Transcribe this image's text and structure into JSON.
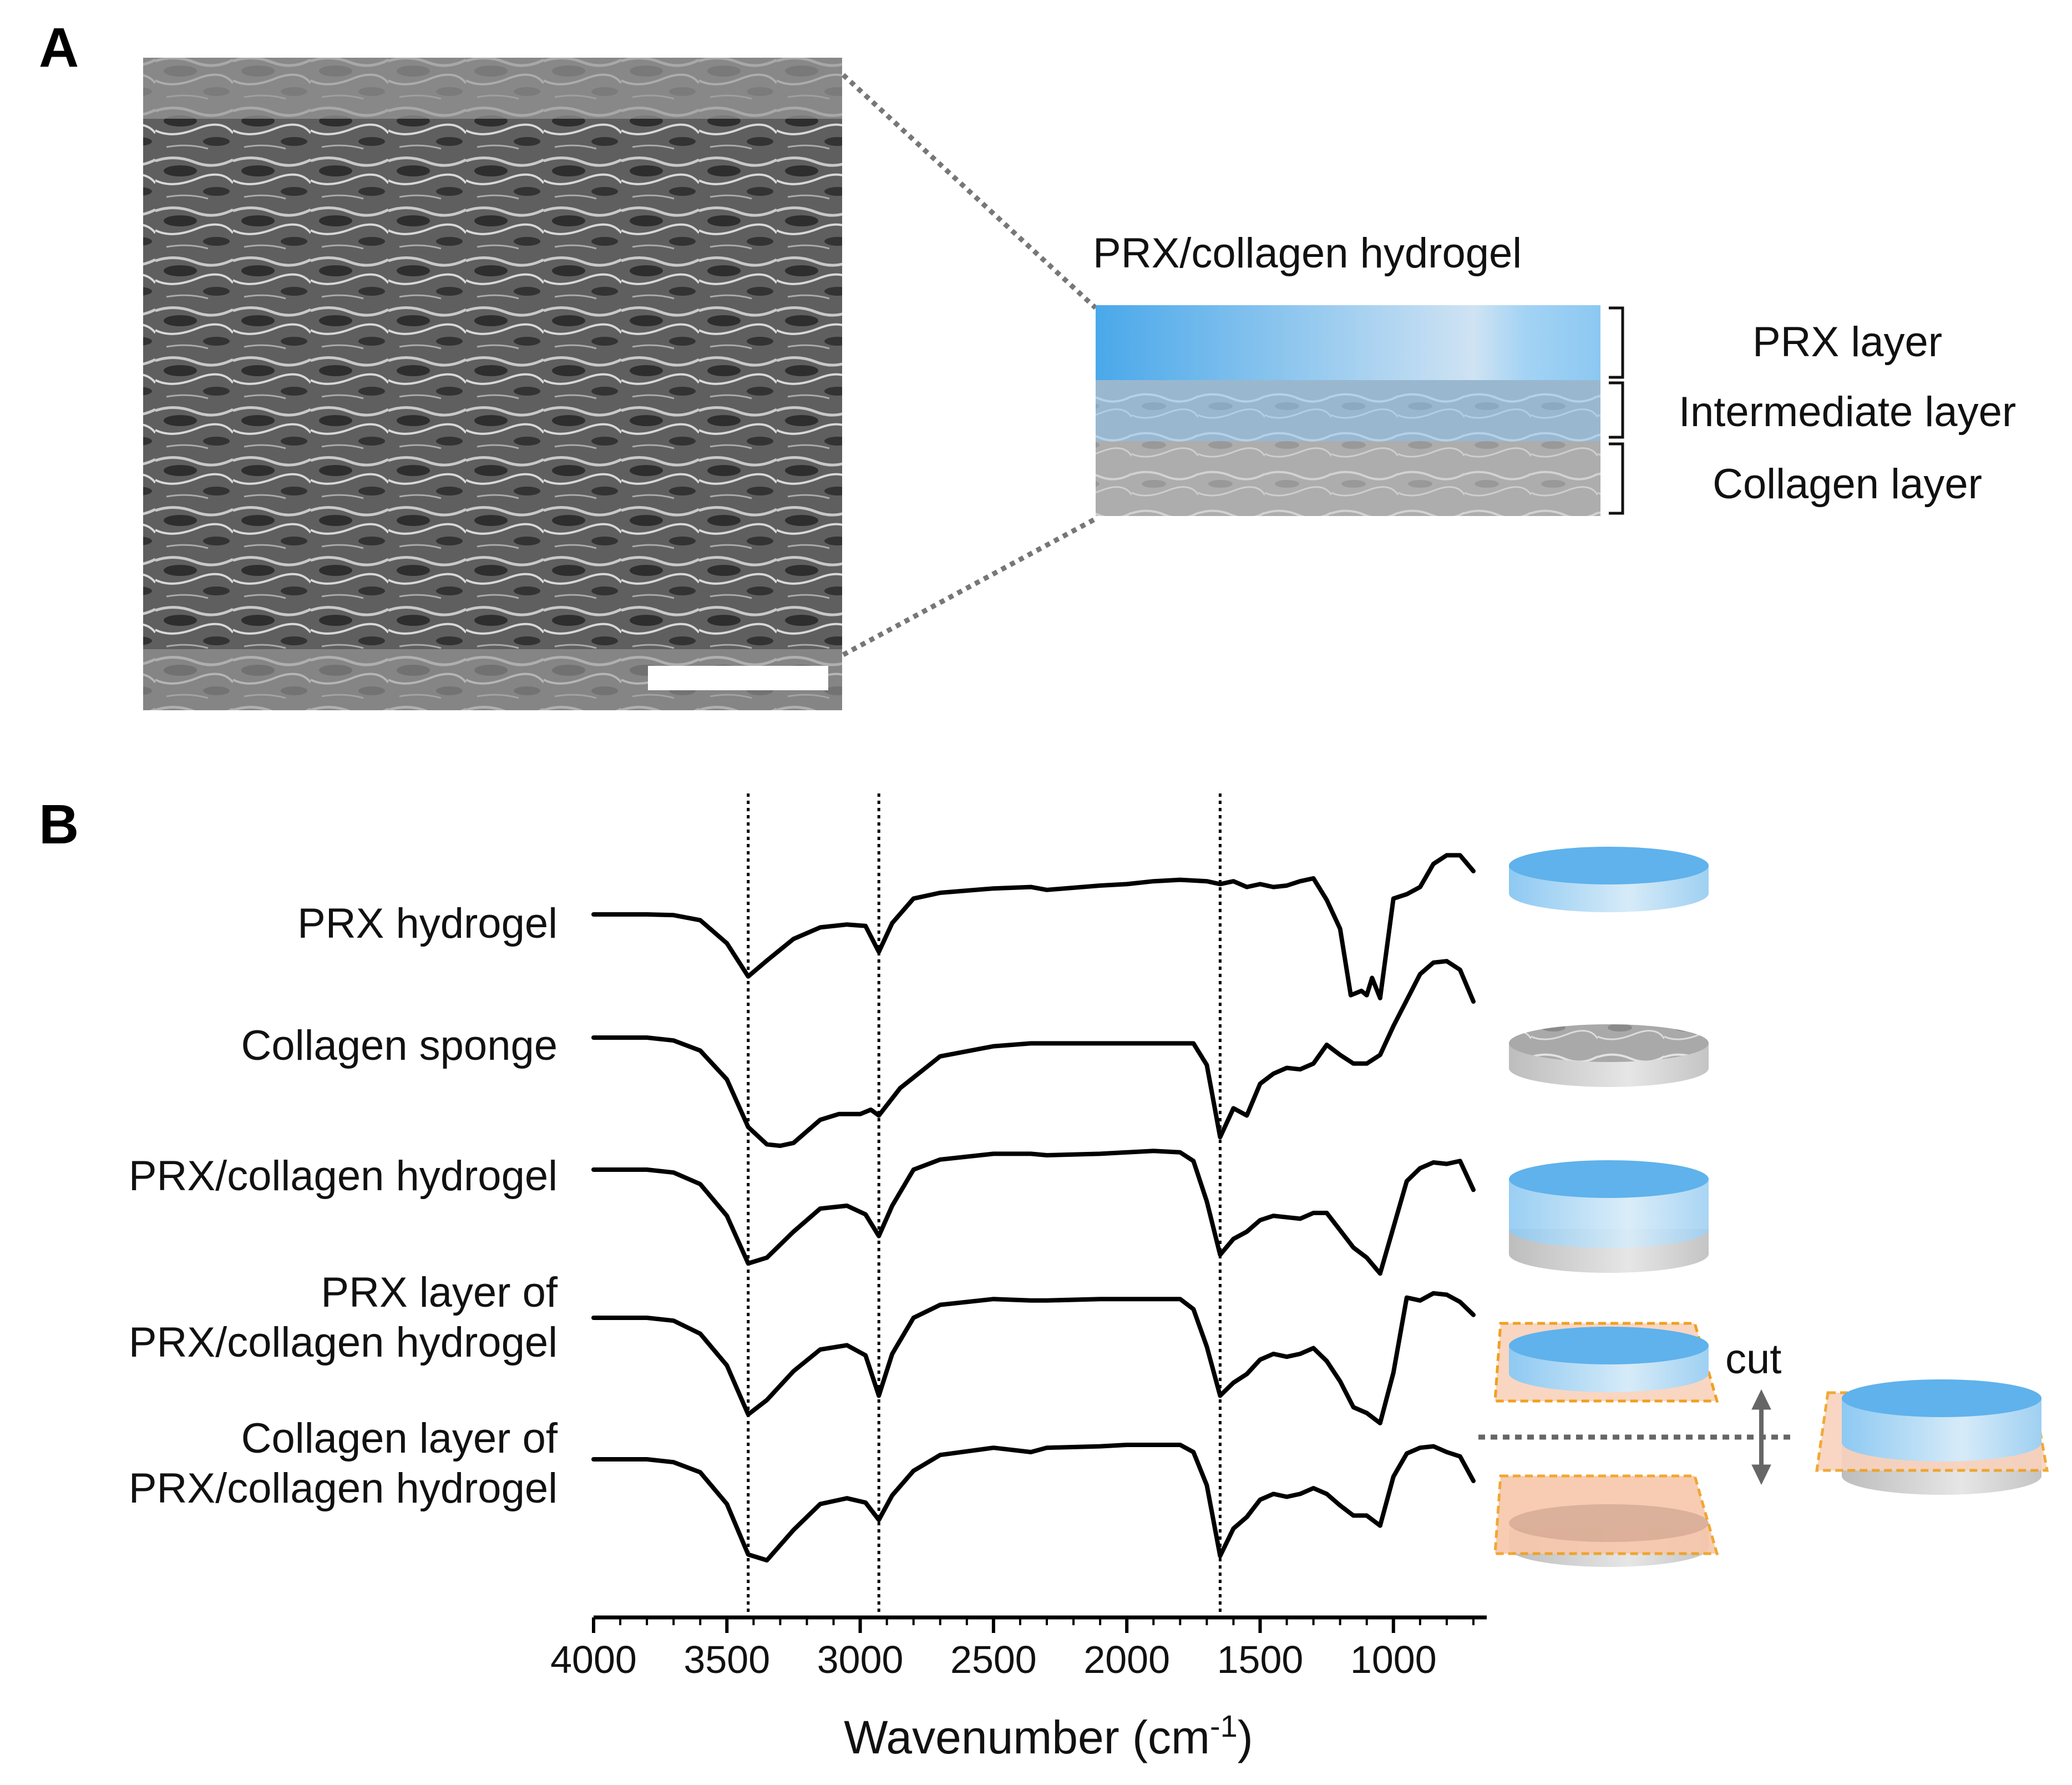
{
  "panel_a": {
    "letter": "A",
    "schematic_title": "PRX/collagen hydrogel",
    "layers": [
      "PRX layer",
      "Intermediate layer",
      "Collagen layer"
    ]
  },
  "panel_b": {
    "letter": "B",
    "cut_label": "cut",
    "sample_labels": [
      [
        "PRX hydrogel"
      ],
      [
        "Collagen sponge"
      ],
      [
        "PRX/collagen hydrogel"
      ],
      [
        "PRX layer of",
        "PRX/collagen hydrogel"
      ],
      [
        "Collagen layer of",
        "PRX/collagen hydrogel"
      ]
    ]
  },
  "chart_data": {
    "type": "line",
    "xlabel": "Wavenumber (cm",
    "xlabel_superscript": "-1",
    "xlabel_suffix": ")",
    "xlim": [
      4000,
      650
    ],
    "x_reversed": true,
    "xticks": [
      4000,
      3500,
      3000,
      2500,
      2000,
      1500,
      1000
    ],
    "reference_lines": [
      3420,
      2930,
      1650
    ],
    "series": [
      {
        "name": "PRX hydrogel",
        "x": [
          4000,
          3800,
          3700,
          3600,
          3500,
          3420,
          3350,
          3250,
          3150,
          3050,
          2980,
          2930,
          2880,
          2800,
          2700,
          2500,
          2360,
          2300,
          2100,
          2000,
          1900,
          1800,
          1700,
          1650,
          1600,
          1550,
          1500,
          1450,
          1400,
          1350,
          1300,
          1250,
          1200,
          1160,
          1120,
          1100,
          1080,
          1050,
          1000,
          950,
          900,
          850,
          800,
          750,
          700
        ],
        "y": [
          0,
          0,
          0.5,
          4,
          20,
          43,
          32,
          17,
          9,
          7,
          8,
          26,
          6,
          -11,
          -15,
          -18,
          -19,
          -17,
          -20,
          -21,
          -23,
          -24,
          -23,
          -21,
          -23,
          -19,
          -21,
          -19,
          -20,
          -23,
          -25,
          -10,
          10,
          56,
          53,
          56,
          44,
          58,
          -11,
          -14,
          -19,
          -35,
          -41,
          -41,
          -30
        ]
      },
      {
        "name": "Collagen sponge",
        "x": [
          4000,
          3800,
          3700,
          3600,
          3500,
          3420,
          3350,
          3300,
          3250,
          3150,
          3080,
          3000,
          2960,
          2930,
          2850,
          2700,
          2500,
          2360,
          2300,
          2100,
          2000,
          1900,
          1800,
          1750,
          1700,
          1650,
          1600,
          1550,
          1500,
          1450,
          1400,
          1350,
          1300,
          1250,
          1200,
          1150,
          1100,
          1050,
          1000,
          950,
          900,
          850,
          800,
          750,
          700
        ],
        "y": [
          0,
          0,
          2,
          9,
          29,
          62,
          74,
          75,
          73,
          57,
          53,
          53,
          50,
          54,
          35,
          13,
          6,
          4,
          4,
          4,
          4,
          4,
          4,
          4,
          19,
          69,
          49,
          54,
          32,
          25,
          21,
          22,
          18,
          5,
          12,
          18,
          18,
          12,
          -8,
          -26,
          -44,
          -52,
          -53,
          -47,
          -25
        ]
      },
      {
        "name": "PRX/collagen hydrogel",
        "x": [
          4000,
          3800,
          3700,
          3600,
          3500,
          3420,
          3350,
          3250,
          3150,
          3050,
          2980,
          2930,
          2880,
          2800,
          2700,
          2500,
          2360,
          2300,
          2100,
          2000,
          1900,
          1800,
          1750,
          1700,
          1650,
          1600,
          1550,
          1500,
          1450,
          1400,
          1350,
          1300,
          1250,
          1200,
          1150,
          1100,
          1050,
          1000,
          950,
          900,
          850,
          800,
          750,
          700
        ],
        "y": [
          0,
          0,
          2,
          10,
          32,
          65,
          61,
          43,
          27,
          25,
          31,
          46,
          25,
          0,
          -7,
          -11,
          -11,
          -10,
          -11,
          -12,
          -13,
          -12,
          -6,
          22,
          59,
          48,
          43,
          35,
          32,
          33,
          34,
          30,
          30,
          42,
          54,
          61,
          72,
          40,
          8,
          -1,
          -5,
          -4,
          -6,
          14
        ]
      },
      {
        "name": "PRX layer of PRX/collagen hydrogel",
        "x": [
          4000,
          3800,
          3700,
          3600,
          3500,
          3420,
          3350,
          3250,
          3150,
          3050,
          2980,
          2930,
          2880,
          2800,
          2700,
          2500,
          2360,
          2300,
          2100,
          2000,
          1900,
          1800,
          1750,
          1700,
          1650,
          1600,
          1550,
          1500,
          1450,
          1400,
          1350,
          1300,
          1250,
          1200,
          1150,
          1100,
          1050,
          1000,
          950,
          900,
          850,
          800,
          750,
          700
        ],
        "y": [
          0,
          0,
          2,
          11,
          33,
          67,
          57,
          37,
          22,
          19,
          26,
          54,
          25,
          0,
          -9,
          -13,
          -12,
          -12,
          -13,
          -13,
          -13,
          -13,
          -6,
          20,
          54,
          45,
          39,
          29,
          25,
          27,
          25,
          21,
          30,
          44,
          62,
          66,
          73,
          38,
          -14,
          -12,
          -17,
          -16,
          -11,
          -2
        ]
      },
      {
        "name": "Collagen layer of PRX/collagen hydrogel",
        "x": [
          4000,
          3800,
          3700,
          3600,
          3500,
          3420,
          3350,
          3250,
          3150,
          3050,
          2980,
          2930,
          2880,
          2800,
          2700,
          2500,
          2360,
          2300,
          2100,
          2000,
          1900,
          1800,
          1750,
          1700,
          1650,
          1600,
          1550,
          1500,
          1450,
          1400,
          1350,
          1300,
          1250,
          1200,
          1150,
          1100,
          1050,
          1000,
          950,
          900,
          850,
          800,
          750,
          700
        ],
        "y": [
          0,
          0,
          2,
          9,
          31,
          66,
          70,
          49,
          31,
          27,
          30,
          42,
          25,
          8,
          -3,
          -8,
          -5,
          -8,
          -9,
          -10,
          -10,
          -10,
          -5,
          18,
          67,
          48,
          40,
          28,
          24,
          26,
          24,
          20,
          24,
          32,
          39,
          39,
          46,
          12,
          -4,
          -8,
          -9,
          -5,
          -2,
          15
        ]
      }
    ]
  }
}
